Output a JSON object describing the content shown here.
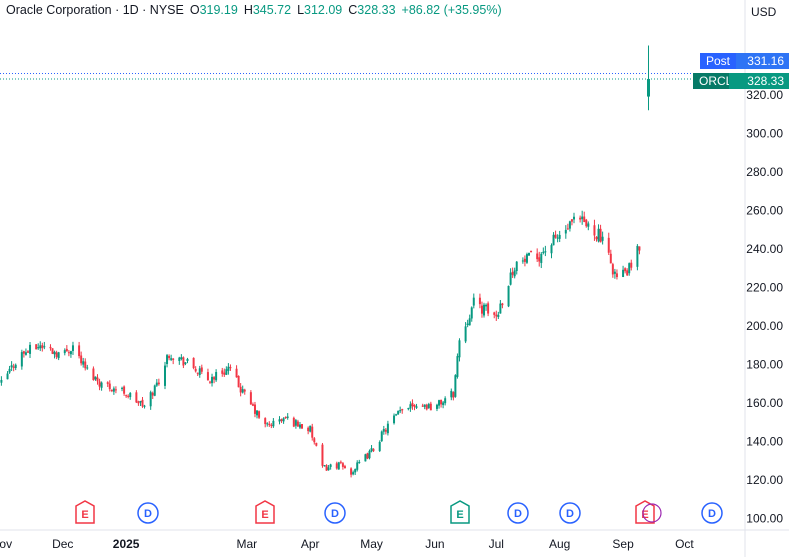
{
  "legend": {
    "title": "Oracle Corporation · 1D · NYSE",
    "open_key": "O",
    "open": "319.19",
    "high_key": "H",
    "high": "345.72",
    "low_key": "L",
    "low": "312.09",
    "close_key": "C",
    "close": "328.33",
    "change": "+86.82 (+35.95%)"
  },
  "currency": "USD",
  "post_tag": {
    "label": "Post",
    "value": "331.16"
  },
  "last_tag": {
    "label": "ORCL",
    "value": "328.33"
  },
  "colors": {
    "up": "#089981",
    "down": "#f23645",
    "post_line": "#2962ff",
    "earnings": "#f23645",
    "earnings_upcoming": "#089981",
    "dividend": "#2962ff"
  },
  "chart_data": {
    "type": "candlestick",
    "symbol": "ORCL",
    "exchange": "NYSE",
    "interval": "1D",
    "y_range": [
      100,
      345.72
    ],
    "y_ticks": [
      "100.00",
      "120.00",
      "140.00",
      "160.00",
      "180.00",
      "200.00",
      "220.00",
      "240.00",
      "260.00",
      "280.00",
      "300.00",
      "320.00"
    ],
    "x_ticks": [
      "Nov",
      "Dec",
      "2025",
      "Mar",
      "Apr",
      "May",
      "Jun",
      "Jul",
      "Aug",
      "Sep",
      "Oct"
    ],
    "grid": false,
    "last_price": 328.33,
    "post_price": 331.16,
    "events": [
      {
        "type": "E",
        "near": "Dec"
      },
      {
        "type": "D",
        "near": "Jan"
      },
      {
        "type": "E",
        "near": "Mar"
      },
      {
        "type": "D",
        "near": "Apr"
      },
      {
        "type": "E",
        "near": "Jun",
        "upcoming": true
      },
      {
        "type": "D",
        "near": "Jul"
      },
      {
        "type": "D",
        "near": "Aug"
      },
      {
        "type": "E",
        "near": "Sep"
      },
      {
        "type": "D",
        "near": "Oct"
      }
    ],
    "trend": {
      "dates": [
        "2024-11-01",
        "2024-11-10",
        "2024-11-20",
        "2024-12-01",
        "2024-12-06",
        "2024-12-12",
        "2024-12-20",
        "2024-12-31",
        "2025-01-10",
        "2025-01-17",
        "2025-01-22",
        "2025-02-01",
        "2025-02-10",
        "2025-02-20",
        "2025-03-01",
        "2025-03-10",
        "2025-03-20",
        "2025-04-01",
        "2025-04-07",
        "2025-04-15",
        "2025-04-21",
        "2025-05-01",
        "2025-05-10",
        "2025-05-20",
        "2025-06-01",
        "2025-06-10",
        "2025-06-13",
        "2025-06-20",
        "2025-07-01",
        "2025-07-10",
        "2025-07-21",
        "2025-07-31",
        "2025-08-10",
        "2025-08-20",
        "2025-08-29",
        "2025-09-05",
        "2025-09-09",
        "2025-09-10"
      ],
      "closes": [
        170,
        185,
        190,
        185,
        190,
        178,
        170,
        166,
        158,
        172,
        186,
        180,
        172,
        178,
        162,
        148,
        152,
        146,
        126,
        128,
        124,
        135,
        150,
        160,
        158,
        165,
        193,
        212,
        205,
        232,
        236,
        246,
        255,
        248,
        225,
        230,
        241,
        328.33
      ]
    }
  }
}
